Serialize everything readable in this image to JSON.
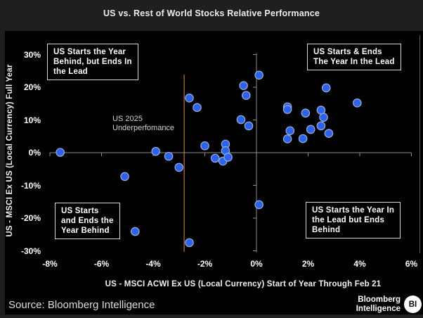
{
  "header": {
    "title": "US vs. Rest of World Stocks Relative Performance"
  },
  "quadrant_labels": {
    "top_left": "US Starts the Year\nBehind, but Ends In\nthe Lead",
    "top_right": "US Starts & Ends\nThe Year In the Lead",
    "bottom_left": "US Starts\nand Ends the\nYear Behind",
    "bottom_right": "US Starts the Year In\nthe Lead but Ends\nBehind"
  },
  "annotation": {
    "text": "US 2025\nUnderperfomance"
  },
  "chart_data": {
    "type": "scatter",
    "title": "US vs. Rest of World Stocks Relative Performance",
    "xlabel": "US - MSCI ACWI Ex US (Local Currency) Start of Year Through Feb 21",
    "ylabel": "US - MSCI Ex US (Local Currency) Full Year",
    "xlim": [
      -8,
      6
    ],
    "ylim": [
      -30,
      30
    ],
    "x_tick_values": [
      -8,
      -6,
      -4,
      -2,
      0,
      2,
      4,
      6
    ],
    "x_tick_labels": [
      "-8%",
      "-6%",
      "-4%",
      "-2%",
      "0%",
      "2%",
      "4%",
      "6%"
    ],
    "y_tick_values": [
      30,
      20,
      10,
      0,
      -10,
      -20,
      -30
    ],
    "y_tick_labels": [
      "30%",
      "20%",
      "10%",
      "0%",
      "-10%",
      "-20%",
      "-30%"
    ],
    "grid": false,
    "marker_color": "#2b63ee",
    "marker_edge_color": "#9badd0",
    "axis_color": "#8f8f8f",
    "reference_line": {
      "x": -2.8,
      "color": "#bd762c",
      "label": "US 2025 Underperfomance"
    },
    "points": [
      [
        -7.6,
        0.1
      ],
      [
        -5.1,
        -7.3
      ],
      [
        -4.7,
        -24.1
      ],
      [
        -3.9,
        0.4
      ],
      [
        -3.4,
        -1.1
      ],
      [
        -3.0,
        -4.5
      ],
      [
        -2.6,
        16.7
      ],
      [
        -2.6,
        -27.5
      ],
      [
        -2.3,
        13.8
      ],
      [
        -2.0,
        2.1
      ],
      [
        -1.6,
        -1.7
      ],
      [
        -1.3,
        -2.6
      ],
      [
        -1.2,
        2.6
      ],
      [
        -1.2,
        0.6
      ],
      [
        -1.1,
        -1.4
      ],
      [
        -0.6,
        10.1
      ],
      [
        -0.5,
        20.5
      ],
      [
        -0.4,
        17.5
      ],
      [
        -0.3,
        8.2
      ],
      [
        0.1,
        23.7
      ],
      [
        0.1,
        -15.9
      ],
      [
        1.2,
        14.0
      ],
      [
        1.2,
        13.2
      ],
      [
        1.2,
        4.2
      ],
      [
        1.3,
        6.7
      ],
      [
        1.8,
        4.3
      ],
      [
        1.9,
        12.1
      ],
      [
        2.1,
        7.1
      ],
      [
        2.5,
        13.0
      ],
      [
        2.5,
        8.2
      ],
      [
        2.6,
        10.8
      ],
      [
        2.7,
        19.8
      ],
      [
        2.8,
        5.9
      ],
      [
        3.9,
        15.2
      ]
    ]
  },
  "footer": {
    "source": "Source: Bloomberg Intelligence",
    "brand": "Bloomberg\nIntelligence",
    "brand_badge": "BI"
  }
}
